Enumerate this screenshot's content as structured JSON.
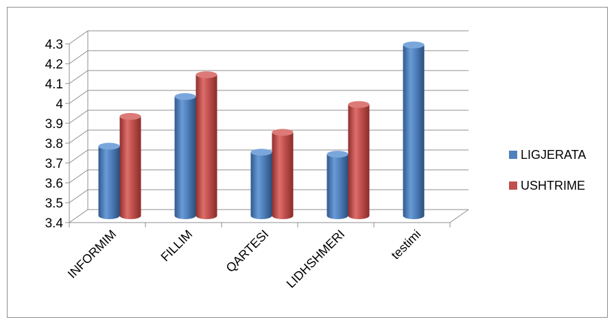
{
  "chart_data": {
    "type": "bar",
    "categories": [
      "INFORMIM",
      "FILLIM",
      "QARTESI",
      "LIDHSHMERI",
      "testimi"
    ],
    "series": [
      {
        "name": "LIGJERATA",
        "color": "#4f81bd",
        "values": [
          3.75,
          4.0,
          3.72,
          3.71,
          4.26
        ]
      },
      {
        "name": "USHTRIME",
        "color": "#c0504d",
        "values": [
          3.9,
          4.11,
          3.82,
          3.96,
          null
        ]
      }
    ],
    "title": "",
    "xlabel": "",
    "ylabel": "",
    "ylim": [
      3.4,
      4.3
    ],
    "yticks": [
      "3.4",
      "3.5",
      "3.6",
      "3.7",
      "3.8",
      "3.9",
      "4",
      "4.1",
      "4.2",
      "4.3"
    ],
    "grid": true,
    "legend": "right",
    "style": "3d-cylinder"
  }
}
